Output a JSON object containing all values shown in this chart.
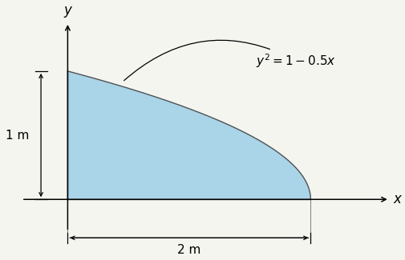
{
  "x_max": 2.0,
  "y_max": 1.0,
  "fill_color": "#aad4e8",
  "fill_alpha": 1.0,
  "edge_color": "#555555",
  "bg_color": "#f5f5f0",
  "annotation_text": "$y^2 = 1 - 0.5x$",
  "xlabel": "x",
  "ylabel": "y",
  "figsize": [
    5.05,
    3.25
  ],
  "dpi": 100
}
